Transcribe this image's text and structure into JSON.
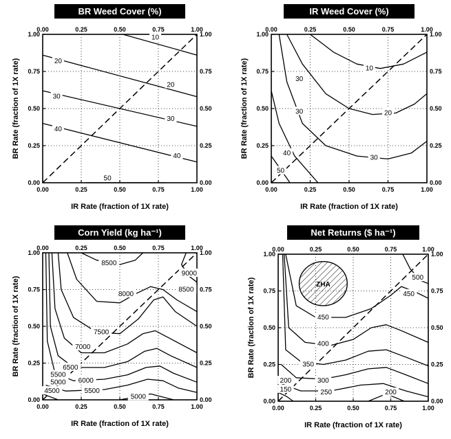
{
  "chart_data": [
    {
      "type": "contour",
      "title": "BR Weed Cover (%)",
      "xlabel": "IR Rate (fraction of 1X rate)",
      "ylabel": "BR Rate (fraction of 1X rate)",
      "xlim": [
        0,
        1
      ],
      "ylim": [
        0,
        1
      ],
      "ticks": [
        "0.00",
        "0.25",
        "0.50",
        "0.75",
        "1.00"
      ],
      "grid": true,
      "reference_line": "dashed 1:1 diagonal",
      "contours": [
        {
          "level": "10",
          "points": [
            [
              0.52,
              1.0
            ],
            [
              1.0,
              0.86
            ]
          ],
          "label_at": [
            0.73,
            0.98
          ]
        },
        {
          "level": "20",
          "points": [
            [
              0.0,
              0.86
            ],
            [
              1.0,
              0.58
            ]
          ],
          "label_at": [
            0.83,
            0.66
          ]
        },
        {
          "level": "20",
          "points": [],
          "label_at": [
            0.1,
            0.82
          ]
        },
        {
          "level": "30",
          "points": [
            [
              0.0,
              0.62
            ],
            [
              1.0,
              0.38
            ]
          ],
          "label_at": [
            0.83,
            0.43
          ]
        },
        {
          "level": "30",
          "points": [],
          "label_at": [
            0.09,
            0.58
          ]
        },
        {
          "level": "40",
          "points": [
            [
              0.0,
              0.4
            ],
            [
              1.0,
              0.14
            ]
          ],
          "label_at": [
            0.87,
            0.18
          ]
        },
        {
          "level": "40",
          "points": [],
          "label_at": [
            0.1,
            0.36
          ]
        },
        {
          "level": "50",
          "points": [
            [
              0.28,
              0.0
            ],
            [
              0.8,
              0.0
            ]
          ],
          "label_at": [
            0.42,
            0.03
          ]
        }
      ]
    },
    {
      "type": "contour",
      "title": "IR Weed Cover (%)",
      "xlabel": "IR Rate (fraction of 1X rate)",
      "ylabel": "BR Rate (fraction of 1X rate)",
      "xlim": [
        0,
        1
      ],
      "ylim": [
        0,
        1
      ],
      "ticks": [
        "0.00",
        "0.25",
        "0.50",
        "0.75",
        "1.00"
      ],
      "grid": true,
      "reference_line": "dashed 1:1 diagonal",
      "contours": [
        {
          "level": "10",
          "points": [
            [
              0.25,
              1.0
            ],
            [
              0.4,
              0.88
            ],
            [
              0.55,
              0.8
            ],
            [
              0.7,
              0.77
            ],
            [
              0.85,
              0.8
            ],
            [
              1.0,
              0.88
            ]
          ],
          "label_at": [
            0.63,
            0.77
          ]
        },
        {
          "level": "20",
          "points": [
            [
              0.1,
              1.0
            ],
            [
              0.2,
              0.8
            ],
            [
              0.35,
              0.6
            ],
            [
              0.5,
              0.5
            ],
            [
              0.65,
              0.46
            ],
            [
              0.8,
              0.47
            ],
            [
              0.92,
              0.53
            ],
            [
              1.0,
              0.6
            ]
          ],
          "label_at": [
            0.75,
            0.47
          ]
        },
        {
          "level": "30",
          "points": [
            [
              0.05,
              1.0
            ],
            [
              0.1,
              0.68
            ],
            [
              0.2,
              0.4
            ],
            [
              0.35,
              0.25
            ],
            [
              0.55,
              0.18
            ],
            [
              0.75,
              0.16
            ],
            [
              0.9,
              0.2
            ],
            [
              1.0,
              0.28
            ]
          ],
          "label_at": [
            0.66,
            0.17
          ]
        },
        {
          "level": "40",
          "points": [
            [
              0.0,
              0.62
            ],
            [
              0.05,
              0.4
            ],
            [
              0.15,
              0.18
            ],
            [
              0.3,
              0.0
            ]
          ],
          "label_at": [
            0.1,
            0.2
          ]
        },
        {
          "level": "50",
          "points": [
            [
              0.0,
              0.18
            ],
            [
              0.12,
              0.0
            ]
          ],
          "label_at": [
            0.06,
            0.08
          ]
        },
        {
          "level": "30",
          "points": [],
          "label_at": [
            0.18,
            0.7
          ]
        },
        {
          "level": "30",
          "points": [],
          "label_at": [
            0.18,
            0.48
          ]
        }
      ]
    },
    {
      "type": "contour",
      "title": "Corn Yield (kg ha⁻¹)",
      "xlabel": "IR Rate (fraction of 1X rate)",
      "ylabel": "BR Rate (fraction of 1X rate)",
      "xlim": [
        0,
        1
      ],
      "ylim": [
        0,
        1
      ],
      "ticks": [
        "0.00",
        "0.25",
        "0.50",
        "0.75",
        "1.00"
      ],
      "grid": true,
      "reference_line": "dashed 1:1 diagonal",
      "contours": [
        {
          "level": "8500",
          "points": [
            [
              0.25,
              1.0
            ],
            [
              0.35,
              0.95
            ],
            [
              0.5,
              0.92
            ],
            [
              0.6,
              0.95
            ],
            [
              0.65,
              1.0
            ]
          ],
          "label_at": [
            0.43,
            0.93
          ]
        },
        {
          "level": "8000",
          "points": [
            [
              0.16,
              1.0
            ],
            [
              0.22,
              0.82
            ],
            [
              0.35,
              0.67
            ],
            [
              0.5,
              0.66
            ],
            [
              0.6,
              0.72
            ],
            [
              0.7,
              0.77
            ],
            [
              0.78,
              0.75
            ],
            [
              0.87,
              0.68
            ],
            [
              1.0,
              0.6
            ]
          ],
          "label_at": [
            0.54,
            0.72
          ]
        },
        {
          "level": "9000",
          "points": [
            [
              0.93,
              1.0
            ],
            [
              0.9,
              0.92
            ],
            [
              0.95,
              0.84
            ],
            [
              1.0,
              0.8
            ]
          ],
          "label_at": [
            0.95,
            0.86
          ]
        },
        {
          "level": "8500",
          "points": [],
          "label_at": [
            0.93,
            0.75
          ]
        },
        {
          "level": "7500",
          "points": [
            [
              0.1,
              1.0
            ],
            [
              0.12,
              0.75
            ],
            [
              0.2,
              0.56
            ],
            [
              0.35,
              0.46
            ],
            [
              0.5,
              0.45
            ],
            [
              0.62,
              0.55
            ],
            [
              0.72,
              0.68
            ],
            [
              0.78,
              0.7
            ],
            [
              0.86,
              0.6
            ],
            [
              1.0,
              0.5
            ]
          ],
          "label_at": [
            0.38,
            0.46
          ]
        },
        {
          "level": "7000",
          "points": [
            [
              0.06,
              1.0
            ],
            [
              0.08,
              0.62
            ],
            [
              0.14,
              0.42
            ],
            [
              0.25,
              0.32
            ],
            [
              0.4,
              0.32
            ],
            [
              0.55,
              0.38
            ],
            [
              0.65,
              0.45
            ],
            [
              0.73,
              0.47
            ],
            [
              0.82,
              0.42
            ],
            [
              1.0,
              0.32
            ]
          ],
          "label_at": [
            0.26,
            0.36
          ]
        },
        {
          "level": "6500",
          "points": [
            [
              0.04,
              1.0
            ],
            [
              0.05,
              0.5
            ],
            [
              0.1,
              0.3
            ],
            [
              0.2,
              0.22
            ],
            [
              0.4,
              0.22
            ],
            [
              0.55,
              0.26
            ],
            [
              0.66,
              0.33
            ],
            [
              0.74,
              0.35
            ],
            [
              0.83,
              0.3
            ],
            [
              1.0,
              0.22
            ]
          ],
          "label_at": [
            0.18,
            0.22
          ]
        },
        {
          "level": "6000",
          "points": [
            [
              0.02,
              1.0
            ],
            [
              0.03,
              0.4
            ],
            [
              0.08,
              0.18
            ],
            [
              0.2,
              0.13
            ],
            [
              0.4,
              0.14
            ],
            [
              0.55,
              0.17
            ],
            [
              0.67,
              0.22
            ],
            [
              0.76,
              0.23
            ],
            [
              0.85,
              0.18
            ],
            [
              1.0,
              0.12
            ]
          ],
          "label_at": [
            0.28,
            0.13
          ]
        },
        {
          "level": "5500",
          "points": [
            [
              0.02,
              0.1
            ],
            [
              0.15,
              0.06
            ],
            [
              0.4,
              0.07
            ],
            [
              0.55,
              0.1
            ],
            [
              0.68,
              0.14
            ],
            [
              0.78,
              0.13
            ],
            [
              0.88,
              0.08
            ],
            [
              1.0,
              0.05
            ]
          ],
          "label_at": [
            0.32,
            0.06
          ]
        },
        {
          "level": "5000",
          "points": [
            [
              0.5,
              0.0
            ],
            [
              0.7,
              0.04
            ],
            [
              0.85,
              0.0
            ]
          ],
          "label_at": [
            0.62,
            0.02
          ]
        },
        {
          "level": "4500",
          "points": [
            [
              0.0,
              0.04
            ],
            [
              0.05,
              0.02
            ],
            [
              0.1,
              0.0
            ]
          ],
          "label_at": [
            0.06,
            0.06
          ]
        },
        {
          "level": "5000",
          "points": [],
          "label_at": [
            0.1,
            0.12
          ]
        },
        {
          "level": "5500",
          "points": [],
          "label_at": [
            0.1,
            0.17
          ]
        }
      ]
    },
    {
      "type": "contour",
      "title": "Net Returns ($ ha⁻¹)",
      "xlabel": "IR Rate (fraction of 1X rate)",
      "ylabel": "BR Rate (fraction of 1X rate)",
      "xlim": [
        0,
        1
      ],
      "ylim": [
        0,
        1
      ],
      "ticks": [
        "0.00",
        "0.25",
        "0.50",
        "0.75",
        "1.00"
      ],
      "grid": true,
      "reference_line": "dashed 1:1 diagonal",
      "region": {
        "label": "ZHA",
        "center": [
          0.3,
          0.8
        ],
        "radius": [
          0.16,
          0.15
        ],
        "hatched": true
      },
      "contours": [
        {
          "level": "500",
          "points": [
            [
              0.83,
              1.0
            ],
            [
              0.88,
              0.9
            ],
            [
              0.95,
              0.82
            ],
            [
              1.0,
              0.8
            ]
          ],
          "label_at": [
            0.93,
            0.84
          ]
        },
        {
          "level": "450",
          "points": [
            [
              0.05,
              1.0
            ],
            [
              0.12,
              0.65
            ],
            [
              0.25,
              0.57
            ],
            [
              0.45,
              0.57
            ],
            [
              0.62,
              0.63
            ],
            [
              0.75,
              0.72
            ],
            [
              0.82,
              0.78
            ],
            [
              0.9,
              0.75
            ],
            [
              1.0,
              0.7
            ]
          ],
          "label_at": [
            0.3,
            0.57
          ]
        },
        {
          "level": "450",
          "points": [],
          "label_at": [
            0.87,
            0.73
          ]
        },
        {
          "level": "400",
          "points": [
            [
              0.04,
              1.0
            ],
            [
              0.07,
              0.5
            ],
            [
              0.18,
              0.4
            ],
            [
              0.35,
              0.38
            ],
            [
              0.5,
              0.42
            ],
            [
              0.62,
              0.5
            ],
            [
              0.72,
              0.52
            ],
            [
              0.82,
              0.48
            ],
            [
              1.0,
              0.4
            ]
          ],
          "label_at": [
            0.3,
            0.39
          ]
        },
        {
          "level": "350",
          "points": [
            [
              0.03,
              1.0
            ],
            [
              0.05,
              0.35
            ],
            [
              0.15,
              0.27
            ],
            [
              0.3,
              0.25
            ],
            [
              0.45,
              0.28
            ],
            [
              0.6,
              0.34
            ],
            [
              0.72,
              0.35
            ],
            [
              0.85,
              0.3
            ],
            [
              1.0,
              0.24
            ]
          ],
          "label_at": [
            0.2,
            0.25
          ]
        },
        {
          "level": "300",
          "points": [
            [
              0.02,
              0.25
            ],
            [
              0.12,
              0.16
            ],
            [
              0.3,
              0.15
            ],
            [
              0.45,
              0.18
            ],
            [
              0.6,
              0.22
            ],
            [
              0.72,
              0.23
            ],
            [
              0.85,
              0.18
            ],
            [
              1.0,
              0.12
            ]
          ],
          "label_at": [
            0.3,
            0.14
          ]
        },
        {
          "level": "250",
          "points": [
            [
              0.02,
              0.12
            ],
            [
              0.15,
              0.07
            ],
            [
              0.35,
              0.07
            ],
            [
              0.55,
              0.11
            ],
            [
              0.7,
              0.12
            ],
            [
              0.85,
              0.07
            ],
            [
              1.0,
              0.03
            ]
          ],
          "label_at": [
            0.32,
            0.06
          ]
        },
        {
          "level": "200",
          "points": [
            [
              0.6,
              0.0
            ],
            [
              0.72,
              0.05
            ],
            [
              0.84,
              0.0
            ]
          ],
          "label_at": [
            0.75,
            0.06
          ]
        },
        {
          "level": "200",
          "points": [],
          "label_at": [
            0.05,
            0.14
          ]
        },
        {
          "level": "150",
          "points": [
            [
              0.0,
              0.06
            ],
            [
              0.06,
              0.03
            ],
            [
              0.1,
              0.0
            ]
          ],
          "label_at": [
            0.05,
            0.08
          ]
        }
      ]
    }
  ]
}
